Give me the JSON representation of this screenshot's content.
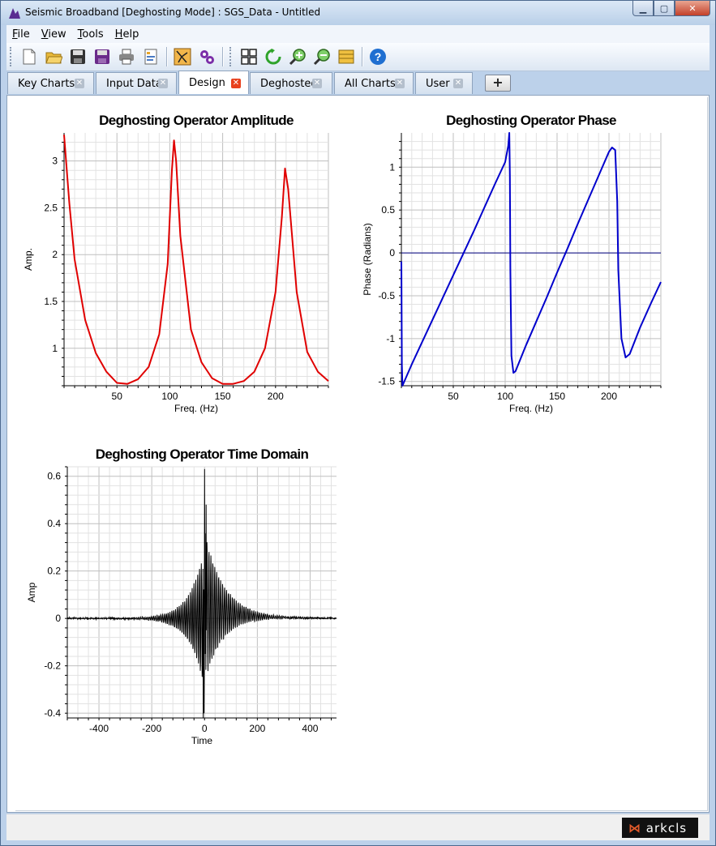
{
  "window": {
    "title": "Seismic Broadband [Deghosting Mode] : SGS_Data - Untitled"
  },
  "menu": [
    "File",
    "View",
    "Tools",
    "Help"
  ],
  "toolbar_icons": [
    "new-file-icon",
    "open-folder-icon",
    "save-icon",
    "save-as-icon",
    "print-icon",
    "report-icon",
    "ghost-model-icon",
    "settings-icon",
    "grid-layout-icon",
    "refresh-icon",
    "zoom-in-icon",
    "zoom-out-icon",
    "layers-icon",
    "help-icon"
  ],
  "tabs": [
    {
      "label": "Key Charts",
      "active": false
    },
    {
      "label": "Input Data",
      "active": false
    },
    {
      "label": "Design",
      "active": true
    },
    {
      "label": "Deghosted",
      "active": false
    },
    {
      "label": "All Charts",
      "active": false
    },
    {
      "label": "User",
      "active": false
    }
  ],
  "add_tab_label": "+",
  "status": {
    "logo_text": "arkcls"
  },
  "colors": {
    "amplitude": "#e00000",
    "phase": "#0000cc",
    "time": "#000000"
  },
  "chart_data": [
    {
      "type": "line",
      "title": "Deghosting Operator Amplitude",
      "xlabel": "Freq. (Hz)",
      "ylabel": "Amp.",
      "xlim": [
        0,
        250
      ],
      "ylim": [
        0.6,
        3.3
      ],
      "xticks": [
        "50",
        "100",
        "150",
        "200"
      ],
      "yticks": [
        "1",
        "1.5",
        "2",
        "2.5",
        "3"
      ],
      "grid": true,
      "series": [
        {
          "x": [
            0,
            5,
            10,
            20,
            30,
            40,
            50,
            60,
            70,
            80,
            90,
            98,
            102,
            104,
            106,
            110,
            120,
            130,
            140,
            150,
            160,
            170,
            180,
            190,
            200,
            206,
            209,
            212,
            220,
            230,
            240,
            250
          ],
          "y": [
            3.28,
            2.55,
            1.95,
            1.3,
            0.95,
            0.75,
            0.63,
            0.62,
            0.67,
            0.8,
            1.15,
            1.9,
            2.9,
            3.22,
            3.0,
            2.2,
            1.2,
            0.85,
            0.68,
            0.62,
            0.62,
            0.65,
            0.75,
            1.0,
            1.6,
            2.4,
            2.92,
            2.7,
            1.6,
            0.96,
            0.75,
            0.65
          ]
        }
      ]
    },
    {
      "type": "line",
      "title": "Deghosting Operator Phase",
      "xlabel": "Freq. (Hz)",
      "ylabel": "Phase (Radians)",
      "xlim": [
        0,
        250
      ],
      "ylim": [
        -1.55,
        1.4
      ],
      "xticks": [
        "50",
        "100",
        "150",
        "200"
      ],
      "yticks": [
        "-1.5",
        "-1",
        "-0.5",
        "0",
        "0.5",
        "1"
      ],
      "grid": true,
      "series": [
        {
          "x": [
            0,
            0.5,
            1,
            10,
            20,
            30,
            40,
            50,
            60,
            70,
            80,
            90,
            100,
            103,
            104,
            104.5,
            105,
            106,
            108,
            110,
            120,
            130,
            140,
            150,
            160,
            170,
            180,
            190,
            200,
            203,
            206,
            208,
            209,
            212,
            216,
            220,
            230,
            240,
            250
          ],
          "y": [
            -0.1,
            -1.3,
            -1.55,
            -1.3,
            -1.04,
            -0.78,
            -0.52,
            -0.26,
            0.0,
            0.26,
            0.53,
            0.8,
            1.06,
            1.25,
            1.4,
            0.9,
            -0.2,
            -1.2,
            -1.4,
            -1.38,
            -1.08,
            -0.8,
            -0.52,
            -0.23,
            0.05,
            0.34,
            0.62,
            0.9,
            1.18,
            1.23,
            1.2,
            0.6,
            -0.2,
            -1.0,
            -1.22,
            -1.18,
            -0.87,
            -0.6,
            -0.34
          ]
        }
      ]
    },
    {
      "type": "line",
      "title": "Deghosting Operator Time Domain",
      "xlabel": "Time",
      "ylabel": "Amp",
      "xlim": [
        -520,
        500
      ],
      "ylim": [
        -0.42,
        0.64
      ],
      "xticks": [
        "-400",
        "-200",
        "0",
        "200",
        "400"
      ],
      "yticks": [
        "-0.4",
        "-0.2",
        "0",
        "0.2",
        "0.4",
        "0.6"
      ],
      "grid": true,
      "series": [
        {
          "name": "",
          "generated": "oscillating impulse response with main spike 0.63 at t=0, negative spike -0.42 at t=-5"
        }
      ]
    }
  ]
}
